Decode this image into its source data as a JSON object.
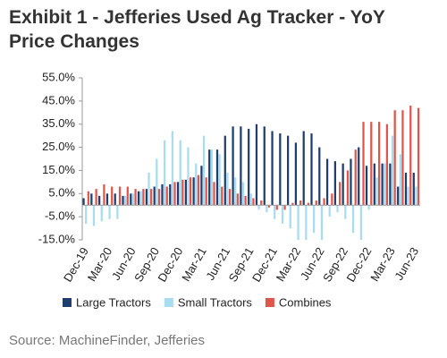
{
  "chart_data": {
    "type": "bar",
    "title": "Exhibit 1 - Jefferies Used Ag Tracker - YoY Price Changes",
    "source": "Source: MachineFinder, Jefferies",
    "categories": [
      "Dec-19",
      null,
      null,
      "Mar-20",
      null,
      null,
      "Jun-20",
      null,
      null,
      "Sep-20",
      null,
      null,
      "Dec-20",
      null,
      null,
      "Mar-21",
      null,
      null,
      "Jun-21",
      null,
      null,
      "Sep-21",
      null,
      null,
      "Dec-21",
      null,
      null,
      "Mar-22",
      null,
      null,
      "Jun-22",
      null,
      null,
      "Sep-22",
      null,
      null,
      "Dec-22",
      null,
      null,
      "Mar-23",
      null,
      null,
      "Jun-23"
    ],
    "series": [
      {
        "name": "Large Tractors",
        "color": "#1f3e6d",
        "values": [
          3,
          5,
          4,
          5,
          5,
          4,
          5,
          6,
          7,
          8,
          9,
          9,
          10,
          11,
          12,
          17,
          24,
          24,
          30,
          34,
          34,
          33,
          35,
          34,
          32,
          31,
          30,
          27,
          32,
          31,
          25,
          20,
          19,
          18,
          20,
          25,
          17,
          18,
          18,
          18,
          8,
          14,
          14
        ]
      },
      {
        "name": "Small Tractors",
        "color": "#a8dcf0",
        "values": [
          -8,
          -9,
          -7,
          -6,
          -6,
          4,
          5,
          6,
          14,
          20,
          28,
          32,
          28,
          25,
          18,
          30,
          24,
          22,
          14,
          12,
          10,
          5,
          -2,
          -3,
          -6,
          -8,
          -10,
          -15,
          -15,
          -12,
          -15,
          -5,
          -3,
          -6,
          -12,
          -15,
          -2,
          12,
          18,
          30,
          22,
          8,
          8
        ]
      },
      {
        "name": "Combines",
        "color": "#e0554b",
        "values": [
          6,
          7,
          9,
          8,
          8,
          8,
          7,
          7,
          7,
          7,
          8,
          10,
          11,
          12,
          13,
          12,
          10,
          8,
          7,
          5,
          4,
          3,
          2,
          -1,
          -2,
          -2,
          1,
          2,
          1,
          2,
          3,
          5,
          10,
          15,
          24,
          36,
          36,
          36,
          35,
          41,
          41,
          43,
          42
        ]
      }
    ],
    "ylim": [
      -15,
      55
    ],
    "yticks": [
      {
        "value": -15,
        "label": "-15.0%"
      },
      {
        "value": -5,
        "label": "-5.0%"
      },
      {
        "value": 5,
        "label": "5.0%"
      },
      {
        "value": 15,
        "label": "15.0%"
      },
      {
        "value": 25,
        "label": "25.0%"
      },
      {
        "value": 35,
        "label": "35.0%"
      },
      {
        "value": 45,
        "label": "45.0%"
      },
      {
        "value": 55,
        "label": "55.0%"
      }
    ],
    "grid": false
  }
}
